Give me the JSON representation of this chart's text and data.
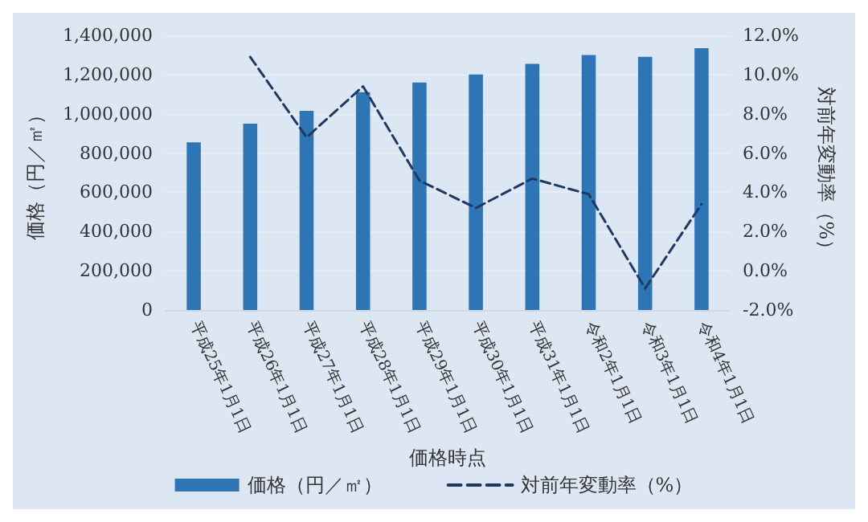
{
  "chart_data": {
    "type": "bar",
    "xlabel": "価格時点",
    "ylabel": "価格（円／㎡）",
    "y2label": "対前年変動率（%）",
    "categories": [
      "平成25年1月1日",
      "平成26年1月1日",
      "平成27年1月1日",
      "平成28年1月1日",
      "平成29年1月1日",
      "平成30年1月1日",
      "平成31年1月1日",
      "令和2年1月1日",
      "令和3年1月1日",
      "令和4年1月1日"
    ],
    "series": [
      {
        "name": "価格（円／㎡）",
        "color": "#2e75b6",
        "values": [
          855000,
          950000,
          1015000,
          1110000,
          1160000,
          1200000,
          1255000,
          1300000,
          1290000,
          1335000
        ]
      },
      {
        "name": "対前年変動率（%）",
        "type": "line",
        "axis": "y2",
        "color": "#1f3864",
        "line_style": "dashed",
        "marker": "none",
        "values": [
          null,
          10.9,
          6.8,
          9.4,
          4.6,
          3.2,
          4.7,
          3.9,
          -0.9,
          3.4
        ]
      }
    ],
    "ylim": [
      0,
      1400000
    ],
    "yticks": [
      0,
      {
        "value": 200000,
        "label": "200,000"
      },
      {
        "value": 400000,
        "label": "400,000"
      },
      {
        "value": 600000,
        "label": "600,000"
      },
      {
        "value": 800000,
        "label": "800,000"
      },
      {
        "value": 1000000,
        "label": "1,000,000"
      },
      {
        "value": 1200000,
        "label": "1,200,000"
      },
      {
        "value": 1400000,
        "label": "1,400,000"
      }
    ],
    "y2lim": [
      -2,
      12
    ],
    "y2ticks": [
      {
        "value": -2,
        "label": "-2.0%"
      },
      {
        "value": 0,
        "label": "0.0%"
      },
      {
        "value": 2,
        "label": "2.0%"
      },
      {
        "value": 4,
        "label": "4.0%"
      },
      {
        "value": 6,
        "label": "6.0%"
      },
      {
        "value": 8,
        "label": "8.0%"
      },
      {
        "value": 10,
        "label": "10.0%"
      },
      {
        "value": 12,
        "label": "12.0%"
      }
    ],
    "grid": "y",
    "legend": "bottom"
  }
}
